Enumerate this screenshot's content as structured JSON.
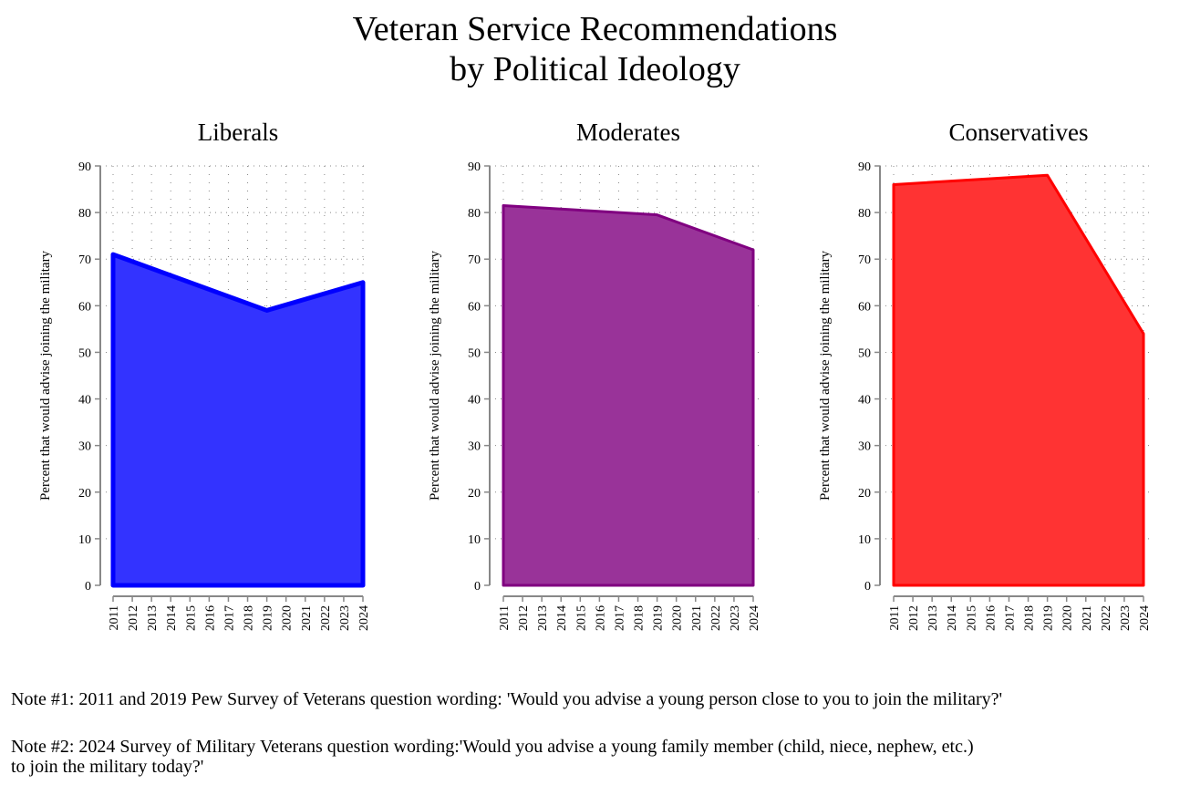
{
  "chart_data": [
    {
      "type": "area",
      "title": "Liberals",
      "ylabel": "Percent that would advise joining the military",
      "x": [
        2011,
        2019,
        2024
      ],
      "values": [
        71,
        59,
        65
      ],
      "ylim": [
        0,
        90
      ],
      "yticks": [
        0,
        10,
        20,
        30,
        40,
        50,
        60,
        70,
        80,
        90
      ],
      "xticks": [
        2011,
        2012,
        2013,
        2014,
        2015,
        2016,
        2017,
        2018,
        2019,
        2020,
        2021,
        2022,
        2023,
        2024
      ],
      "fill": "#3333ff",
      "line": "#0000ff",
      "grid": true
    },
    {
      "type": "area",
      "title": "Moderates",
      "ylabel": "Percent that would advise joining the military",
      "x": [
        2011,
        2019,
        2024
      ],
      "values": [
        81.5,
        79.5,
        72
      ],
      "ylim": [
        0,
        90
      ],
      "yticks": [
        0,
        10,
        20,
        30,
        40,
        50,
        60,
        70,
        80,
        90
      ],
      "xticks": [
        2011,
        2012,
        2013,
        2014,
        2015,
        2016,
        2017,
        2018,
        2019,
        2020,
        2021,
        2022,
        2023,
        2024
      ],
      "fill": "#993399",
      "line": "#800080",
      "grid": true
    },
    {
      "type": "area",
      "title": "Conservatives",
      "ylabel": "Percent that would advise joining the military",
      "x": [
        2011,
        2019,
        2024
      ],
      "values": [
        86,
        88,
        54
      ],
      "ylim": [
        0,
        90
      ],
      "yticks": [
        0,
        10,
        20,
        30,
        40,
        50,
        60,
        70,
        80,
        90
      ],
      "xticks": [
        2011,
        2012,
        2013,
        2014,
        2015,
        2016,
        2017,
        2018,
        2019,
        2020,
        2021,
        2022,
        2023,
        2024
      ],
      "fill": "#ff3333",
      "line": "#ff0000",
      "grid": true
    }
  ],
  "title_line1": "Veteran Service Recommendations",
  "title_line2": "by Political Ideology",
  "note1": "Note #1: 2011 and 2019 Pew Survey of Veterans question wording: 'Would you advise a young person close to you to join the military?'",
  "note2a": "Note #2: 2024 Survey of Military Veterans question wording:'Would you advise a young family member (child, niece, nephew, etc.)",
  "note2b": "to join the military today?'"
}
